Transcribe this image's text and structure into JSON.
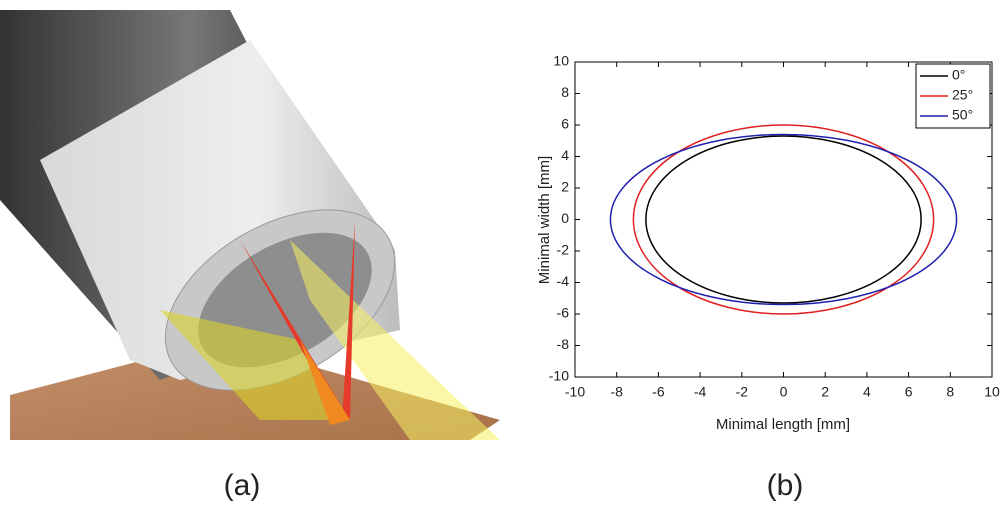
{
  "panel_a": {
    "caption": "(a)"
  },
  "panel_b": {
    "caption": "(b)"
  },
  "chart_data": {
    "type": "ellipse",
    "xlabel": "Minimal length [mm]",
    "ylabel": "Minimal width [mm]",
    "xlim": [
      -10,
      10
    ],
    "ylim": [
      -10,
      10
    ],
    "xticks": [
      -10,
      -8,
      -6,
      -4,
      -2,
      0,
      2,
      4,
      6,
      8,
      10
    ],
    "yticks": [
      -10,
      -8,
      -6,
      -4,
      -2,
      0,
      2,
      4,
      6,
      8,
      10
    ],
    "legend": "upper right",
    "series": [
      {
        "name": "0°",
        "color": "#000000",
        "rx": 6.6,
        "ry": 5.3
      },
      {
        "name": "25°",
        "color": "#e02020",
        "rx": 7.2,
        "ry": 6.0
      },
      {
        "name": "50°",
        "color": "#2020b0",
        "rx": 8.3,
        "ry": 5.4
      }
    ]
  }
}
